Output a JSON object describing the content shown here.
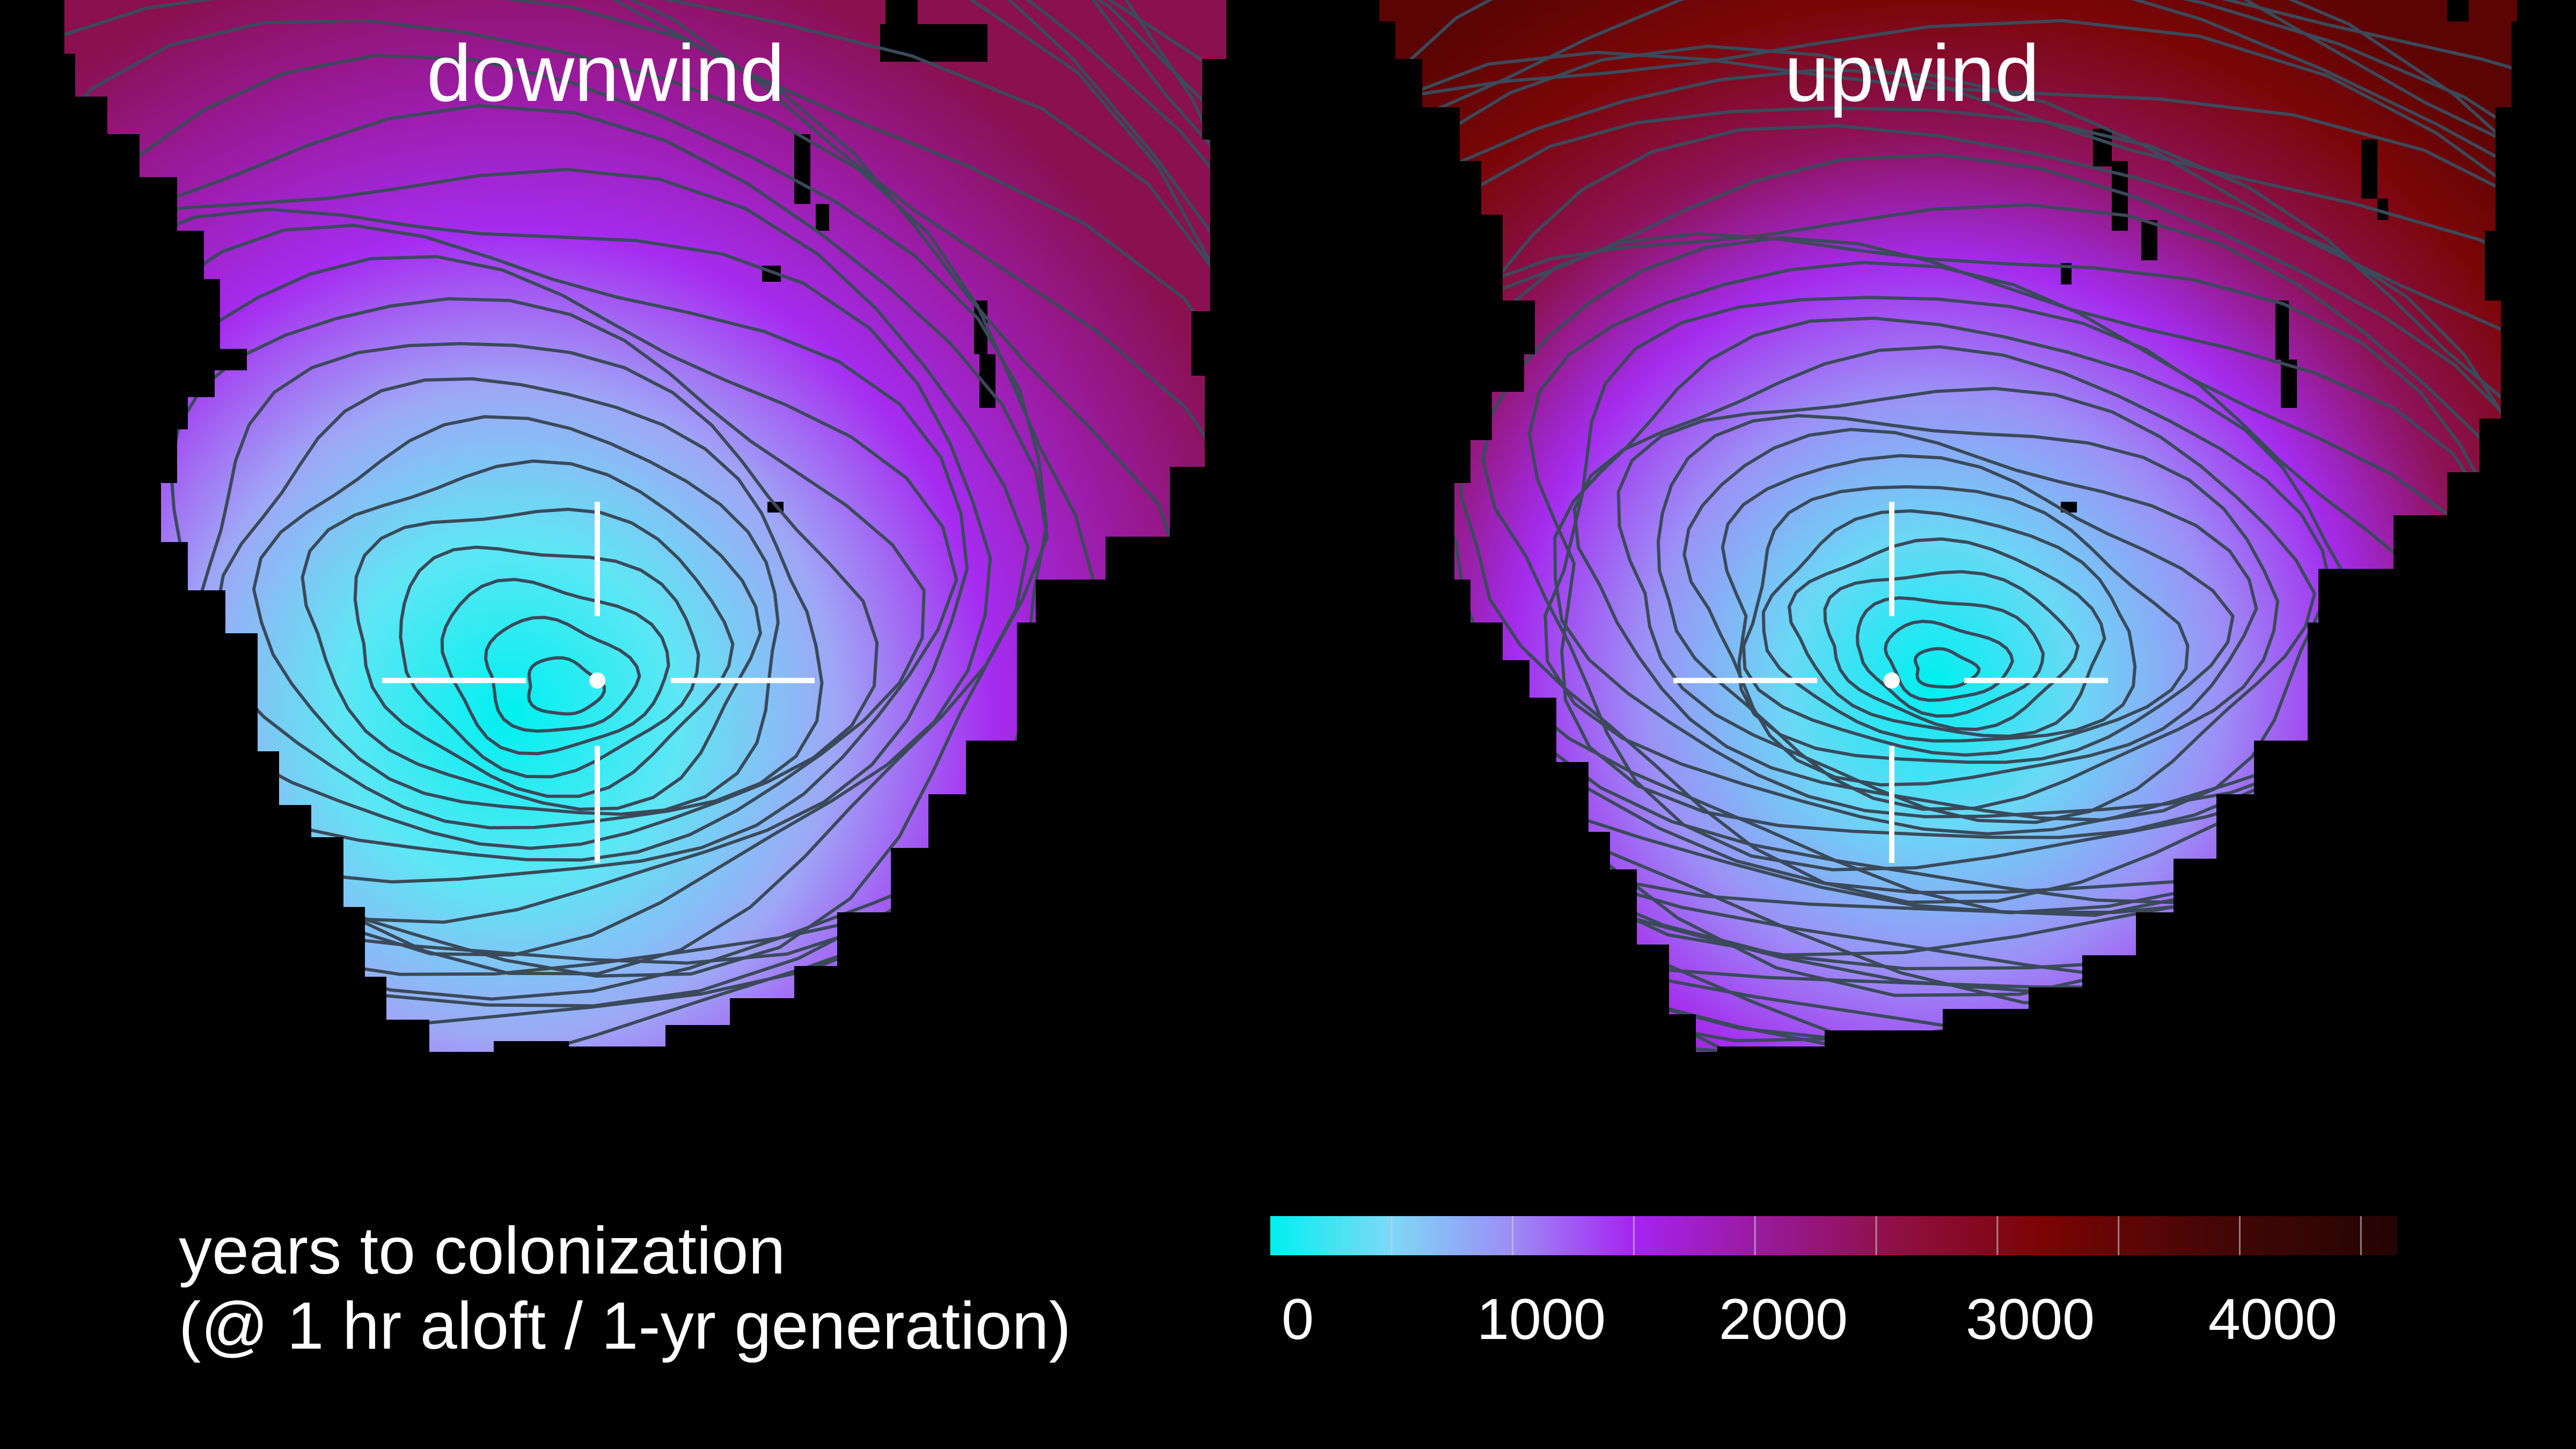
{
  "panels": [
    {
      "title": "downwind"
    },
    {
      "title": "upwind"
    }
  ],
  "legend": {
    "caption_line1": "years to colonization",
    "caption_line2": "(@ 1 hr aloft / 1-yr generation)",
    "tick_labels": [
      "0",
      "1000",
      "2000",
      "3000",
      "4000"
    ],
    "min": 0,
    "max": 4650,
    "stops": [
      {
        "value": 0,
        "color": "#00f0f0"
      },
      {
        "value": 500,
        "color": "#7fd8f6"
      },
      {
        "value": 1000,
        "color": "#9c8cf6"
      },
      {
        "value": 1500,
        "color": "#a524f2"
      },
      {
        "value": 2000,
        "color": "#9a1aa0"
      },
      {
        "value": 2600,
        "color": "#8e1040"
      },
      {
        "value": 3200,
        "color": "#7a0404"
      },
      {
        "value": 3800,
        "color": "#4a0606"
      },
      {
        "value": 4650,
        "color": "#240404"
      }
    ]
  },
  "colors": {
    "background": "#000000",
    "contour": "#3a4a5a",
    "crosshair": "#ffffff"
  }
}
